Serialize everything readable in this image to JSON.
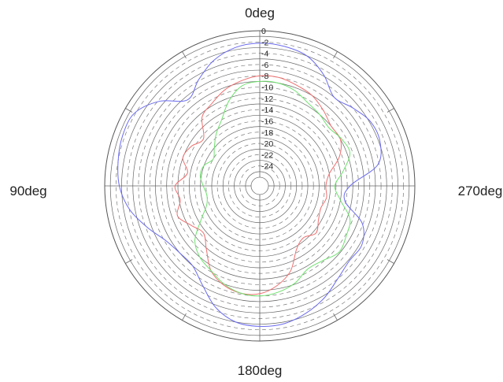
{
  "chart_data": {
    "type": "line",
    "subtype": "polar",
    "title": "",
    "direction_labels": {
      "top": "0deg",
      "left": "90deg",
      "bottom": "180deg",
      "right": "270deg"
    },
    "angle_direction": "counter-clockwise",
    "zero_angle": "top",
    "radial_range": [
      -26,
      0
    ],
    "radial_ticks": [
      "0",
      "-2",
      "-4",
      "-6",
      "-8",
      "-10",
      "-12",
      "-14",
      "-16",
      "-18",
      "-20",
      "-22",
      "-24"
    ],
    "angular_tick_step_deg": 30,
    "grid": true,
    "legend": "none",
    "series": [
      {
        "color": "#6b6bf0",
        "angles": [
          0,
          10,
          20,
          30,
          40,
          50,
          60,
          70,
          80,
          90,
          100,
          110,
          120,
          130,
          140,
          150,
          160,
          170,
          180,
          190,
          200,
          210,
          220,
          230,
          240,
          250,
          260,
          270,
          280,
          290,
          300,
          310,
          320,
          330,
          340,
          350
        ],
        "values": [
          -2.2,
          -2.6,
          -3.8,
          -5.8,
          -7.6,
          -4.2,
          -1.8,
          -1.6,
          -2.0,
          -2.6,
          -4.0,
          -6.2,
          -8.2,
          -9.0,
          -9.0,
          -7.2,
          -4.6,
          -3.0,
          -2.6,
          -2.7,
          -3.5,
          -4.6,
          -6.0,
          -6.8,
          -6.6,
          -8.2,
          -12.2,
          -11.5,
          -6.3,
          -4.8,
          -4.8,
          -6.0,
          -7.0,
          -4.8,
          -3.0,
          -2.4
        ]
      },
      {
        "color": "#f07070",
        "angles": [
          0,
          10,
          20,
          30,
          40,
          50,
          60,
          70,
          80,
          90,
          100,
          110,
          120,
          130,
          140,
          150,
          160,
          170,
          180,
          190,
          200,
          210,
          220,
          230,
          240,
          250,
          260,
          270,
          280,
          290,
          300,
          310,
          320,
          330,
          340,
          350
        ],
        "values": [
          -8.0,
          -8.6,
          -9.4,
          -10.6,
          -11.6,
          -14.5,
          -13.5,
          -13.0,
          -14.5,
          -12.5,
          -13.2,
          -12.0,
          -13.5,
          -14.5,
          -12.8,
          -10.2,
          -8.8,
          -8.2,
          -8.4,
          -9.6,
          -11.5,
          -14.5,
          -15.5,
          -14.5,
          -15.5,
          -16.0,
          -15.5,
          -15.8,
          -15.0,
          -12.5,
          -11.0,
          -11.0,
          -10.0,
          -9.0,
          -8.5,
          -8.0
        ]
      },
      {
        "color": "#6fe26f",
        "angles": [
          0,
          10,
          20,
          30,
          40,
          50,
          60,
          70,
          80,
          90,
          100,
          110,
          120,
          130,
          140,
          150,
          160,
          170,
          180,
          190,
          200,
          210,
          220,
          230,
          240,
          250,
          260,
          270,
          280,
          290,
          300,
          310,
          320,
          330,
          340,
          350
        ],
        "values": [
          -9.0,
          -9.5,
          -11.5,
          -14.0,
          -15.5,
          -17.0,
          -18.0,
          -17.0,
          -16.8,
          -17.5,
          -18.0,
          -17.5,
          -15.5,
          -12.5,
          -11.0,
          -10.2,
          -9.0,
          -8.2,
          -8.0,
          -8.4,
          -9.2,
          -10.5,
          -10.2,
          -9.2,
          -9.8,
          -10.5,
          -13.0,
          -14.2,
          -12.5,
          -10.5,
          -10.8,
          -11.5,
          -11.0,
          -10.5,
          -9.5,
          -9.0
        ]
      }
    ]
  }
}
